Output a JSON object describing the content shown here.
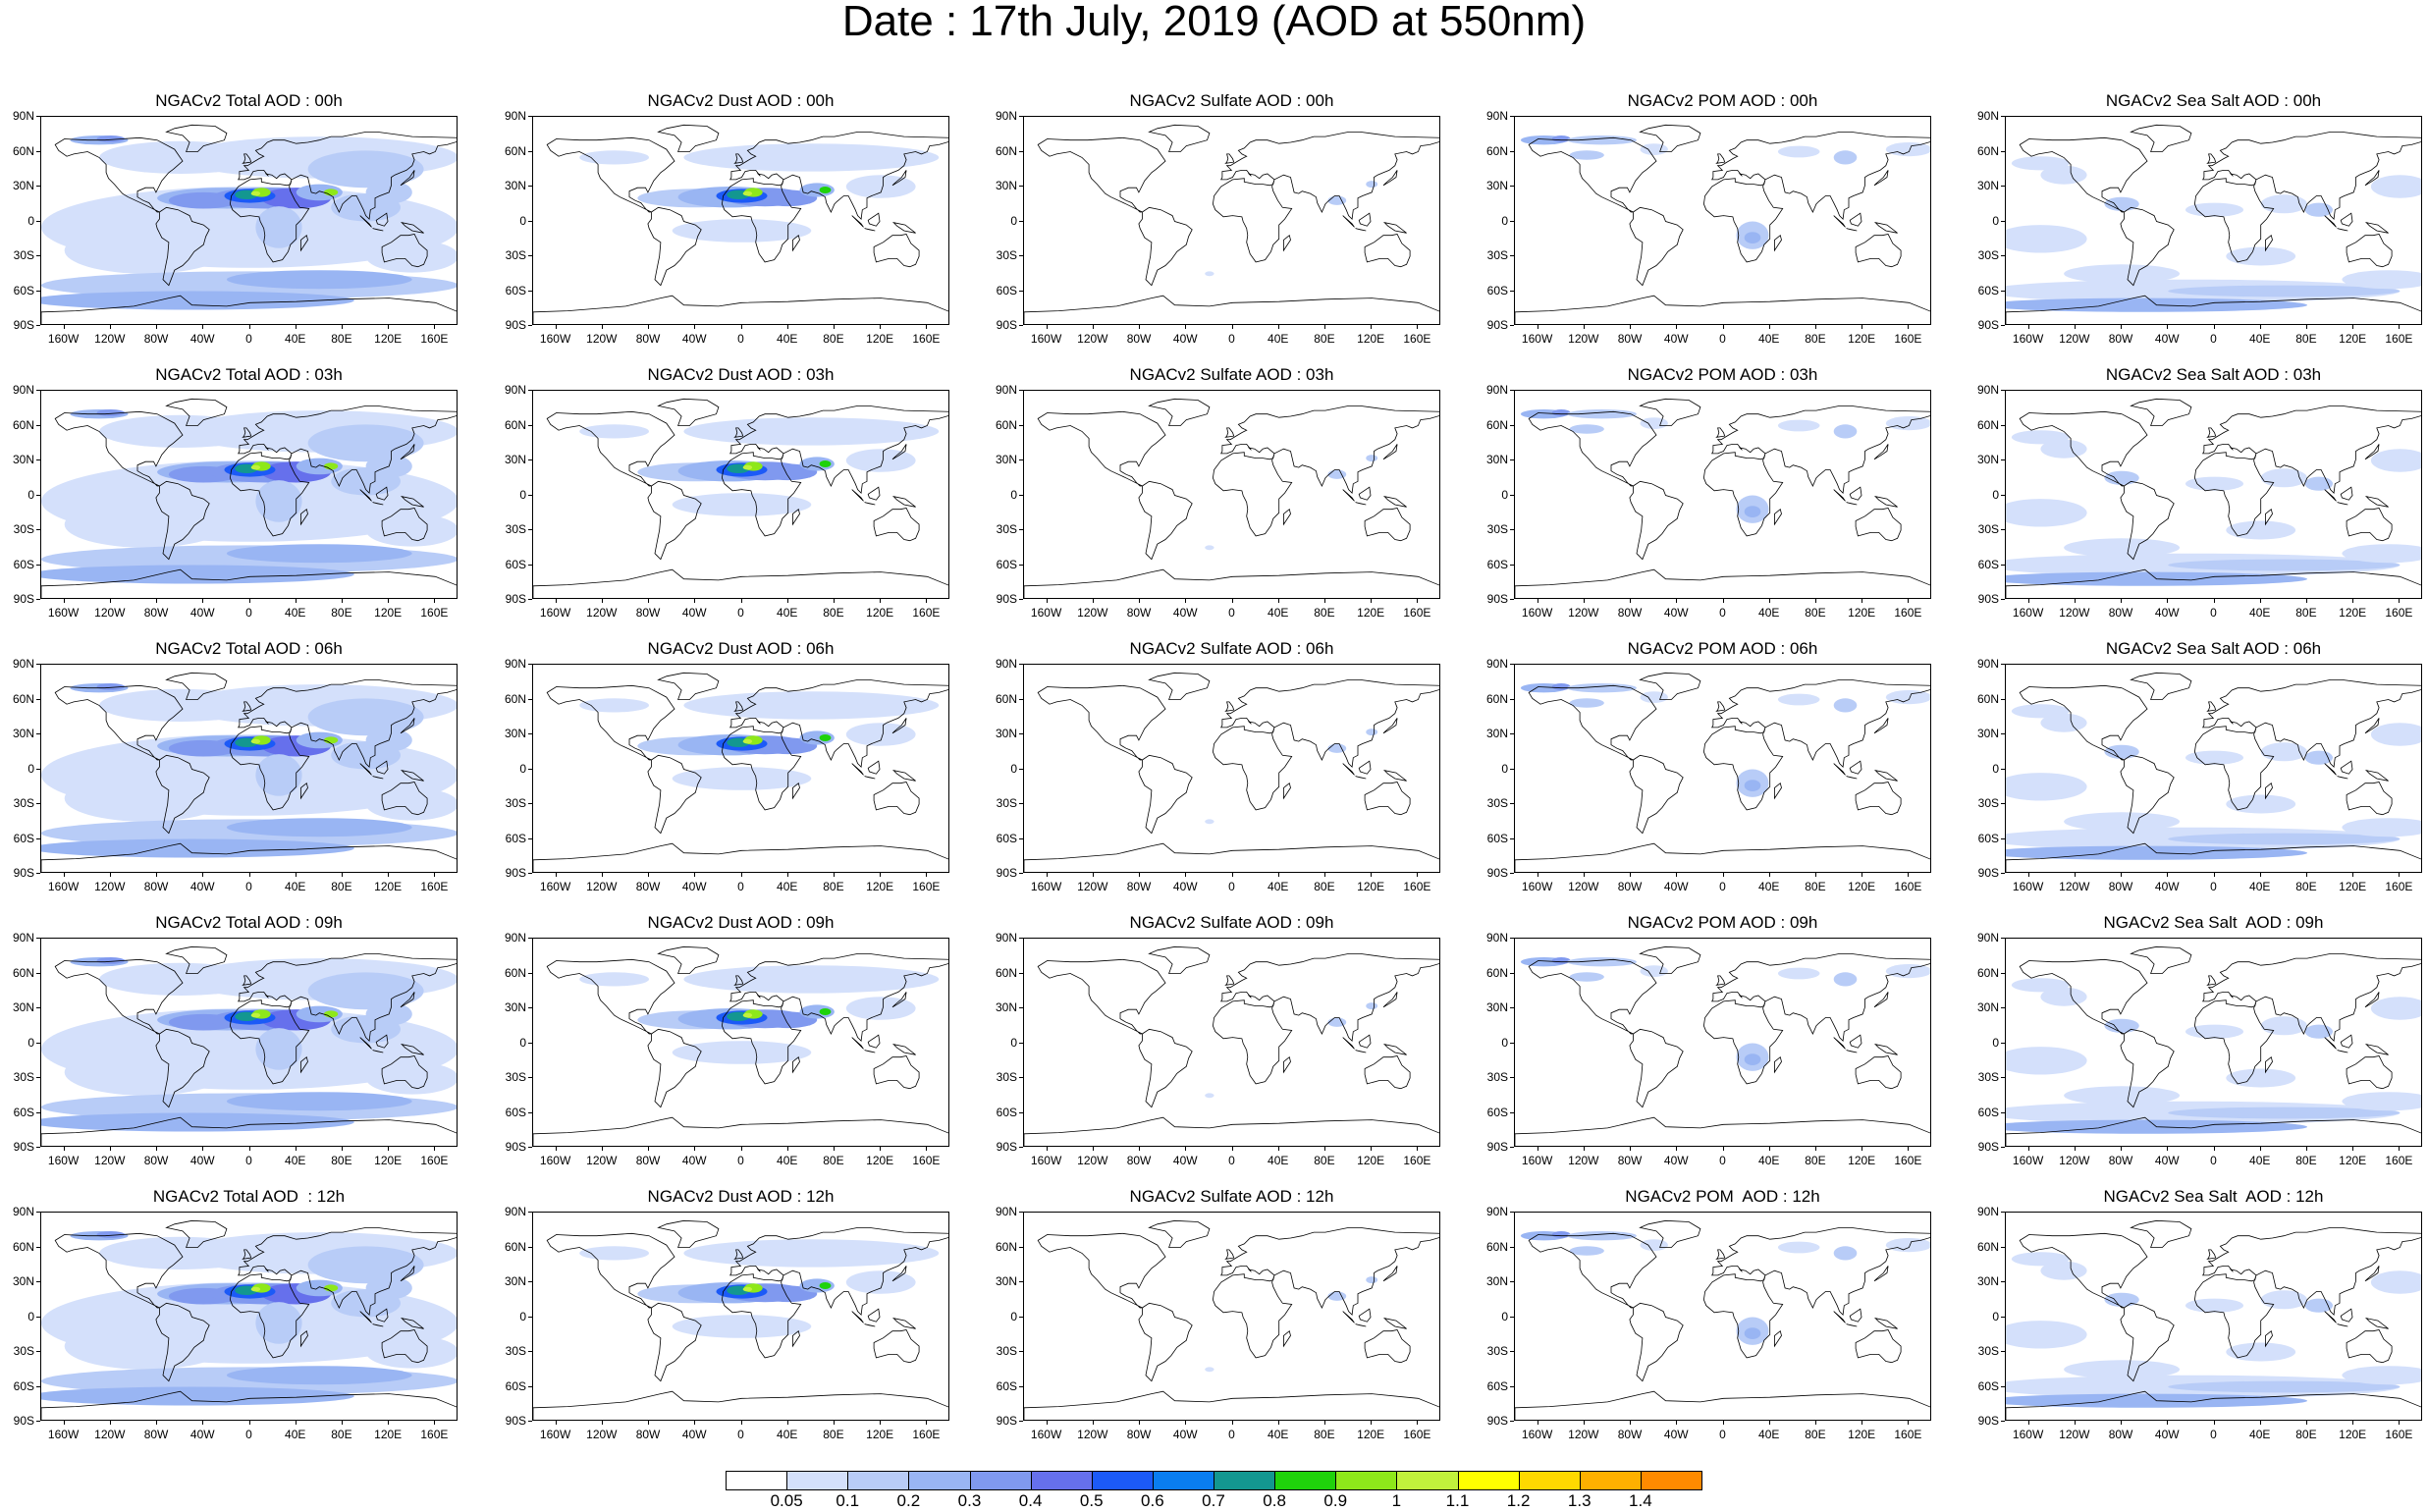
{
  "title": "Date : 17th July, 2019 (AOD at 550nm)",
  "axes": {
    "lat_labels": [
      "90N",
      "60N",
      "30N",
      "0",
      "30S",
      "60S",
      "90S"
    ],
    "lon_labels": [
      "160W",
      "120W",
      "80W",
      "40W",
      "0",
      "40E",
      "80E",
      "120E",
      "160E"
    ]
  },
  "panels": [
    {
      "title": "NGACv2 Total AOD : 00h",
      "variable": "total"
    },
    {
      "title": "NGACv2 Dust AOD : 00h",
      "variable": "dust"
    },
    {
      "title": "NGACv2 Sulfate AOD : 00h",
      "variable": "sulfate"
    },
    {
      "title": "NGACv2 POM AOD : 00h",
      "variable": "pom"
    },
    {
      "title": "NGACv2 Sea Salt AOD : 00h",
      "variable": "seasalt"
    },
    {
      "title": "NGACv2 Total AOD : 03h",
      "variable": "total"
    },
    {
      "title": "NGACv2 Dust AOD : 03h",
      "variable": "dust"
    },
    {
      "title": "NGACv2 Sulfate AOD : 03h",
      "variable": "sulfate"
    },
    {
      "title": "NGACv2 POM AOD : 03h",
      "variable": "pom"
    },
    {
      "title": "NGACv2 Sea Salt AOD : 03h",
      "variable": "seasalt"
    },
    {
      "title": "NGACv2 Total AOD : 06h",
      "variable": "total"
    },
    {
      "title": "NGACv2 Dust AOD : 06h",
      "variable": "dust"
    },
    {
      "title": "NGACv2 Sulfate AOD : 06h",
      "variable": "sulfate"
    },
    {
      "title": "NGACv2 POM AOD : 06h",
      "variable": "pom"
    },
    {
      "title": "NGACv2 Sea Salt AOD : 06h",
      "variable": "seasalt"
    },
    {
      "title": "NGACv2 Total AOD : 09h",
      "variable": "total"
    },
    {
      "title": "NGACv2 Dust AOD : 09h",
      "variable": "dust"
    },
    {
      "title": "NGACv2 Sulfate AOD : 09h",
      "variable": "sulfate"
    },
    {
      "title": "NGACv2 POM AOD : 09h",
      "variable": "pom"
    },
    {
      "title": "NGACv2 Sea Salt  AOD : 09h",
      "variable": "seasalt"
    },
    {
      "title": "NGACv2 Total AOD  : 12h",
      "variable": "total"
    },
    {
      "title": "NGACv2 Dust AOD : 12h",
      "variable": "dust"
    },
    {
      "title": "NGACv2 Sulfate AOD : 12h",
      "variable": "sulfate"
    },
    {
      "title": "NGACv2 POM  AOD : 12h",
      "variable": "pom"
    },
    {
      "title": "NGACv2 Sea Salt  AOD : 12h",
      "variable": "seasalt"
    }
  ],
  "colorbar": {
    "labels": [
      "0.05",
      "0.1",
      "0.2",
      "0.3",
      "0.4",
      "0.5",
      "0.6",
      "0.7",
      "0.8",
      "0.9",
      "1",
      "1.1",
      "1.2",
      "1.3",
      "1.4"
    ],
    "colors": [
      "#ffffff",
      "#d4e0fb",
      "#b8ccf7",
      "#99b5f3",
      "#8099ef",
      "#6670ec",
      "#1c5af7",
      "#0a7df0",
      "#139790",
      "#1fd20b",
      "#8ee81a",
      "#c1f23c",
      "#ffff00",
      "#ffd900",
      "#ffb000",
      "#ff8a00",
      "#ff6000",
      "#ff2a00"
    ]
  }
}
